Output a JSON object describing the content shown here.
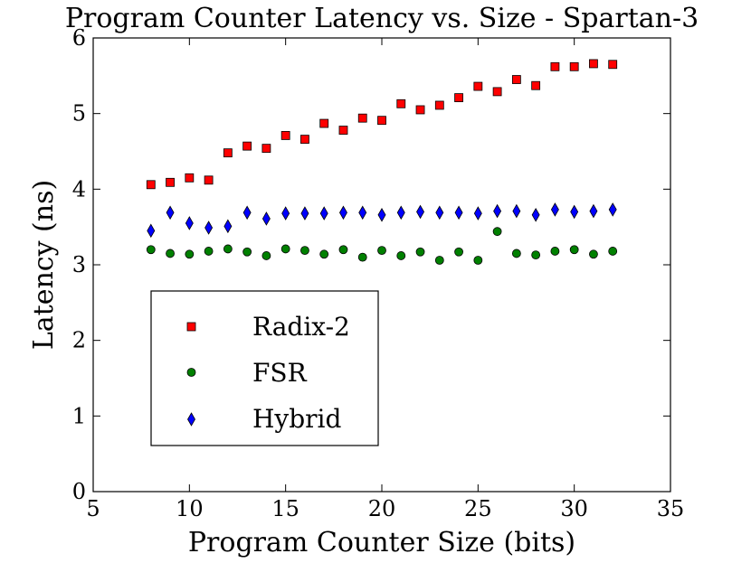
{
  "chart_data": {
    "type": "scatter",
    "title": "Program Counter Latency vs. Size - Spartan-3",
    "xlabel": "Program Counter Size (bits)",
    "ylabel": "Latency (ns)",
    "xlim": [
      5,
      35
    ],
    "ylim": [
      0,
      6
    ],
    "xticks": [
      "5",
      "10",
      "15",
      "20",
      "25",
      "30",
      "35"
    ],
    "yticks": [
      "0",
      "1",
      "2",
      "3",
      "4",
      "5",
      "6"
    ],
    "grid": false,
    "legend_position": "lower-left",
    "series": [
      {
        "name": "Radix-2",
        "marker": "square",
        "color": "#ff0000",
        "x": [
          8,
          9,
          10,
          11,
          12,
          13,
          14,
          15,
          16,
          17,
          18,
          19,
          20,
          21,
          22,
          23,
          24,
          25,
          26,
          27,
          28,
          29,
          30,
          31,
          32
        ],
        "y": [
          4.06,
          4.09,
          4.15,
          4.12,
          4.48,
          4.57,
          4.54,
          4.71,
          4.66,
          4.87,
          4.78,
          4.94,
          4.91,
          5.13,
          5.05,
          5.11,
          5.21,
          5.36,
          5.29,
          5.45,
          5.37,
          5.62,
          5.62,
          5.66,
          5.65
        ]
      },
      {
        "name": "FSR",
        "marker": "circle",
        "color": "#008000",
        "x": [
          8,
          9,
          10,
          11,
          12,
          13,
          14,
          15,
          16,
          17,
          18,
          19,
          20,
          21,
          22,
          23,
          24,
          25,
          26,
          27,
          28,
          29,
          30,
          31,
          32
        ],
        "y": [
          3.2,
          3.15,
          3.14,
          3.18,
          3.21,
          3.17,
          3.12,
          3.21,
          3.19,
          3.14,
          3.2,
          3.1,
          3.19,
          3.12,
          3.17,
          3.06,
          3.17,
          3.06,
          3.44,
          3.15,
          3.13,
          3.18,
          3.2,
          3.14,
          3.18
        ]
      },
      {
        "name": "Hybrid",
        "marker": "thin-diamond",
        "color": "#0000ff",
        "x": [
          8,
          9,
          10,
          11,
          12,
          13,
          14,
          15,
          16,
          17,
          18,
          19,
          20,
          21,
          22,
          23,
          24,
          25,
          26,
          27,
          28,
          29,
          30,
          31,
          32
        ],
        "y": [
          3.45,
          3.69,
          3.55,
          3.49,
          3.51,
          3.69,
          3.61,
          3.68,
          3.68,
          3.68,
          3.69,
          3.69,
          3.66,
          3.69,
          3.7,
          3.69,
          3.69,
          3.68,
          3.71,
          3.71,
          3.66,
          3.73,
          3.7,
          3.71,
          3.73
        ]
      }
    ]
  }
}
